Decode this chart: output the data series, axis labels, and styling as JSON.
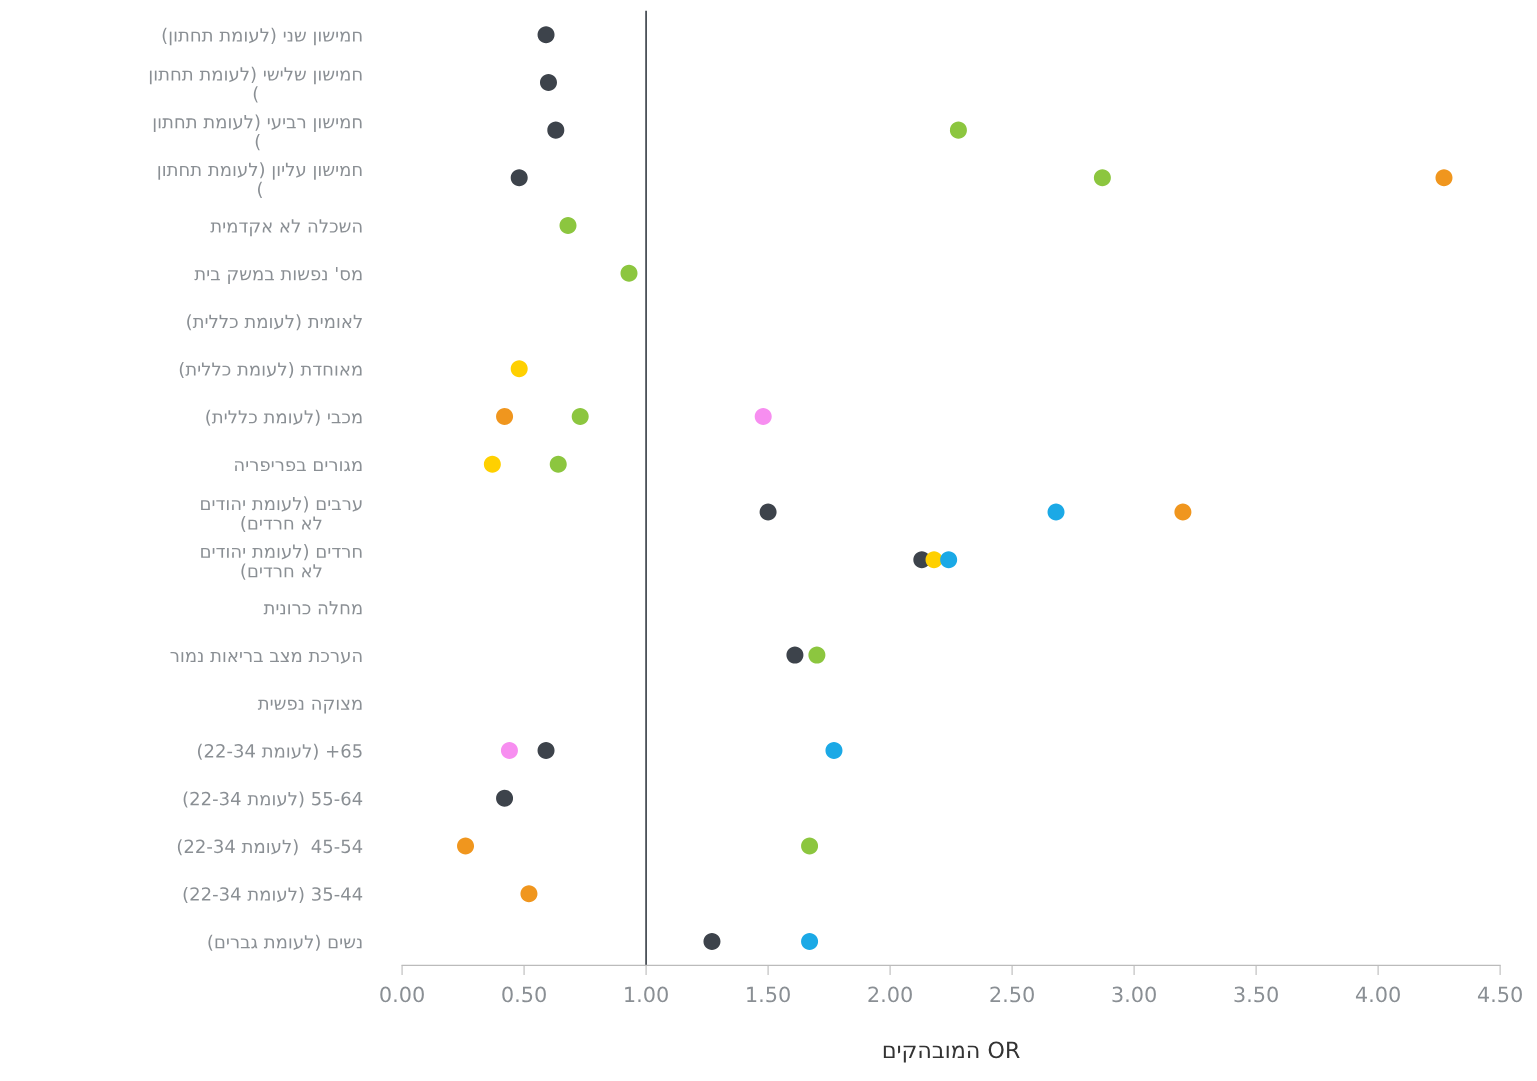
{
  "chart_data": {
    "type": "scatter",
    "categories": [
      "(ןותחת תמועל) ינש ןושימח",
      "ןותחת תמועל) ישילש ןושימח\n(",
      "ןותחת תמועל) יעיבר ןושימח\n(",
      "ןותחת תמועל) ןוילע ןושימח\n(",
      "תימדקא אל הלכשה",
      "תיב קשמב תושפנ 'סמ",
      "(תיללכ תמועל) תימואל",
      "(תיללכ תמועל) תדחואמ",
      "(תיללכ תמועל) יבכמ",
      "הירפירפב םירוגמ",
      "םידוהי תמועל) םיברע\n(םידרח אל",
      "םידוהי תמועל) םידרח\n(םידרח אל",
      "תינורכ הלחמ",
      "רומנ תואירב בצמ תכרעה",
      "תישפנ הקוצמ",
      "(22-34 תמועל) +65",
      "(22-34 תמועל) 55-64",
      "(22-34 תמועל)  45-54",
      "(22-34 תמועל) 35-44",
      "(םירבג תמועל) םישנ"
    ],
    "series": [
      {
        "color": "#3d434b",
        "values": [
          0.59,
          0.6,
          0.63,
          0.48,
          null,
          null,
          null,
          null,
          null,
          null,
          1.5,
          2.13,
          null,
          1.61,
          null,
          0.59,
          0.42,
          null,
          null,
          1.27
        ]
      },
      {
        "color": "#8cc63f",
        "values": [
          null,
          null,
          2.28,
          2.87,
          0.68,
          0.93,
          null,
          null,
          0.73,
          0.64,
          null,
          null,
          null,
          1.7,
          null,
          null,
          null,
          1.67,
          null,
          null
        ]
      },
      {
        "color": "#f0961e",
        "values": [
          null,
          null,
          null,
          4.27,
          null,
          null,
          null,
          null,
          0.42,
          null,
          3.2,
          null,
          null,
          null,
          null,
          null,
          null,
          0.26,
          0.52,
          null
        ]
      },
      {
        "color": "#ffd000",
        "values": [
          null,
          null,
          null,
          null,
          null,
          null,
          null,
          0.48,
          null,
          0.37,
          null,
          2.18,
          null,
          null,
          null,
          null,
          null,
          null,
          null,
          null
        ]
      },
      {
        "color": "#f78ef0",
        "values": [
          null,
          null,
          null,
          null,
          null,
          null,
          null,
          null,
          1.48,
          null,
          null,
          null,
          null,
          null,
          null,
          0.44,
          null,
          null,
          null,
          null
        ]
      },
      {
        "color": "#1ba9e6",
        "values": [
          null,
          null,
          null,
          null,
          null,
          null,
          null,
          null,
          null,
          null,
          2.68,
          2.24,
          null,
          null,
          null,
          1.77,
          null,
          null,
          null,
          1.67
        ]
      }
    ],
    "orientation": "horizontal",
    "xlim": [
      0,
      4.5
    ],
    "xticks": [
      {
        "value": 0,
        "label": "0.00"
      },
      {
        "value": 0.5,
        "label": "0.50"
      },
      {
        "value": 1,
        "label": "1.00"
      },
      {
        "value": 1.5,
        "label": "1.50"
      },
      {
        "value": 2,
        "label": "2.00"
      },
      {
        "value": 2.5,
        "label": "2.50"
      },
      {
        "value": 3,
        "label": "3.00"
      },
      {
        "value": 3.5,
        "label": "3.50"
      },
      {
        "value": 4,
        "label": "4.00"
      },
      {
        "value": 4.5,
        "label": "4.50"
      }
    ],
    "xlabel": "םיקהבומה OR",
    "ref_lines": [
      {
        "axis": "x",
        "value": 1,
        "color": "#3d434b"
      }
    ],
    "marker": "circle",
    "grid": false
  }
}
